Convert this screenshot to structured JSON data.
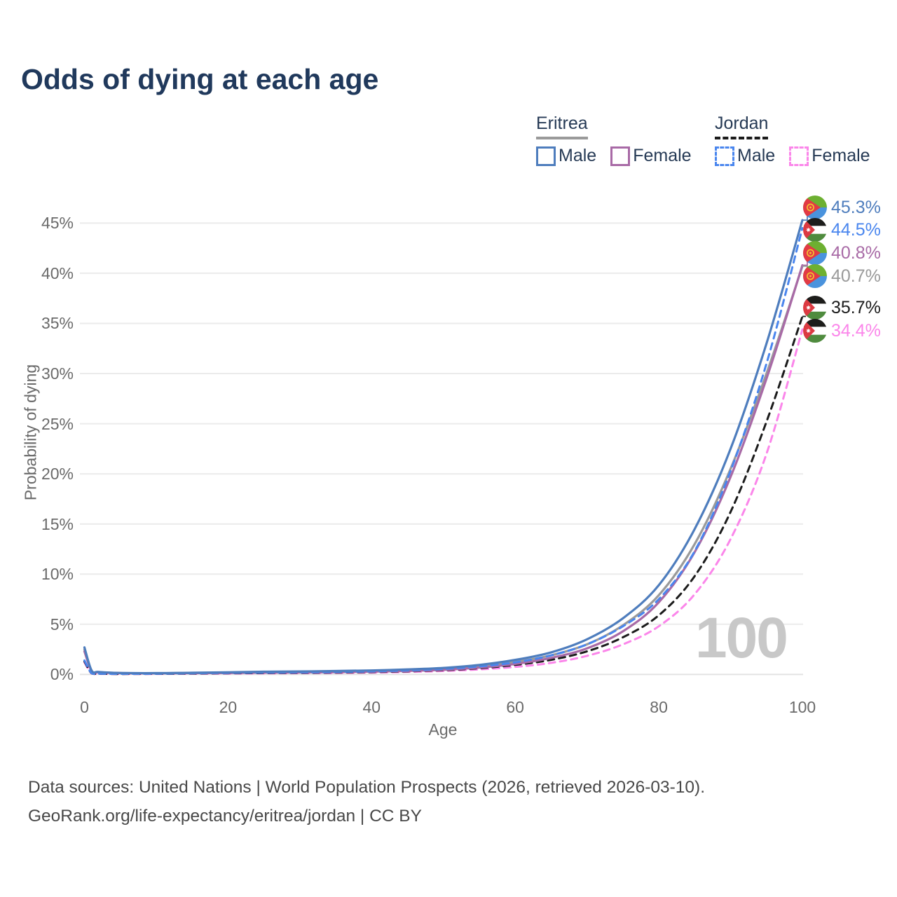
{
  "title": "Odds of dying at each age",
  "watermark": "100",
  "legend": {
    "groups": [
      {
        "name": "Eritrea",
        "line_style": "solid",
        "underline_color": "#9a9a9a",
        "items": [
          {
            "label": "Male",
            "color": "#4e7dbd"
          },
          {
            "label": "Female",
            "color": "#a86aa6"
          }
        ]
      },
      {
        "name": "Jordan",
        "line_style": "dashed",
        "underline_color": "#1b1b1b",
        "items": [
          {
            "label": "Male",
            "color": "#4a86ee"
          },
          {
            "label": "Female",
            "color": "#fb86ea"
          }
        ]
      }
    ]
  },
  "footer": {
    "line1": "Data sources: United Nations | World Population Prospects (2026, retrieved 2026-03-10).",
    "line2": "GeoRank.org/life-expectancy/eritrea/jordan | CC BY"
  },
  "chart_data": {
    "type": "line",
    "title": "Odds of dying at each age",
    "xlabel": "Age",
    "ylabel": "Probability of dying",
    "xlim": [
      0,
      100
    ],
    "ylim": [
      0,
      47
    ],
    "grid": "horizontal",
    "x_ticks": [
      0,
      20,
      40,
      60,
      80,
      100
    ],
    "y_ticks": [
      "0%",
      "5%",
      "10%",
      "15%",
      "20%",
      "25%",
      "30%",
      "35%",
      "40%",
      "45%"
    ],
    "y_tick_values": [
      0,
      5,
      10,
      15,
      20,
      25,
      30,
      35,
      40,
      45
    ],
    "hover_age": "100",
    "x": [
      0,
      1,
      2,
      5,
      10,
      15,
      20,
      25,
      30,
      35,
      40,
      45,
      50,
      55,
      60,
      65,
      70,
      75,
      80,
      85,
      90,
      95,
      100
    ],
    "series": [
      {
        "name": "Eritrea Male",
        "country": "Eritrea",
        "flag": "eritrea",
        "color": "#4e7dbd",
        "dash": "solid",
        "end_label": "45.3%",
        "end_value": 45.3,
        "values": [
          2.7,
          0.4,
          0.25,
          0.15,
          0.13,
          0.17,
          0.22,
          0.27,
          0.3,
          0.34,
          0.4,
          0.5,
          0.65,
          0.95,
          1.45,
          2.2,
          3.5,
          5.6,
          8.9,
          14.5,
          22.5,
          33.0,
          45.3
        ]
      },
      {
        "name": "Jordan Male",
        "country": "Jordan",
        "flag": "jordan",
        "color": "#4a86ee",
        "dash": "dashed",
        "end_label": "44.5%",
        "end_value": 44.5,
        "values": [
          1.4,
          0.12,
          0.08,
          0.06,
          0.07,
          0.12,
          0.16,
          0.19,
          0.21,
          0.25,
          0.31,
          0.4,
          0.55,
          0.8,
          1.2,
          1.9,
          3.0,
          4.8,
          7.5,
          12.3,
          20.3,
          31.0,
          44.5
        ]
      },
      {
        "name": "Eritrea Female",
        "country": "Eritrea",
        "flag": "eritrea",
        "color": "#a86aa6",
        "dash": "solid",
        "end_label": "40.8%",
        "end_value": 40.8,
        "values": [
          2.3,
          0.34,
          0.21,
          0.13,
          0.11,
          0.13,
          0.15,
          0.18,
          0.2,
          0.23,
          0.28,
          0.35,
          0.46,
          0.68,
          1.05,
          1.65,
          2.6,
          4.3,
          7.2,
          12.2,
          19.7,
          29.5,
          40.8
        ]
      },
      {
        "name": "Eritrea",
        "country": "Eritrea",
        "flag": "eritrea",
        "color": "#9a9a9a",
        "dash": "solid",
        "end_label": "40.7%",
        "end_value": 40.7,
        "values": [
          2.5,
          0.37,
          0.23,
          0.14,
          0.12,
          0.15,
          0.18,
          0.22,
          0.25,
          0.28,
          0.33,
          0.42,
          0.55,
          0.8,
          1.25,
          1.9,
          3.0,
          4.9,
          7.9,
          13.0,
          20.5,
          30.0,
          40.7
        ]
      },
      {
        "name": "Jordan",
        "country": "Jordan",
        "flag": "jordan",
        "color": "#1b1b1b",
        "dash": "dashed",
        "end_label": "35.7%",
        "end_value": 35.7,
        "values": [
          1.3,
          0.11,
          0.07,
          0.05,
          0.06,
          0.09,
          0.12,
          0.14,
          0.16,
          0.19,
          0.24,
          0.31,
          0.42,
          0.62,
          0.95,
          1.45,
          2.3,
          3.7,
          5.9,
          9.8,
          16.2,
          25.2,
          35.7
        ]
      },
      {
        "name": "Jordan Female",
        "country": "Jordan",
        "flag": "jordan",
        "color": "#fb86ea",
        "dash": "dashed",
        "end_label": "34.4%",
        "end_value": 34.4,
        "values": [
          1.2,
          0.1,
          0.06,
          0.05,
          0.05,
          0.07,
          0.09,
          0.11,
          0.13,
          0.15,
          0.19,
          0.25,
          0.34,
          0.5,
          0.75,
          1.15,
          1.85,
          3.0,
          4.8,
          8.0,
          13.5,
          22.0,
          34.4
        ]
      }
    ]
  }
}
